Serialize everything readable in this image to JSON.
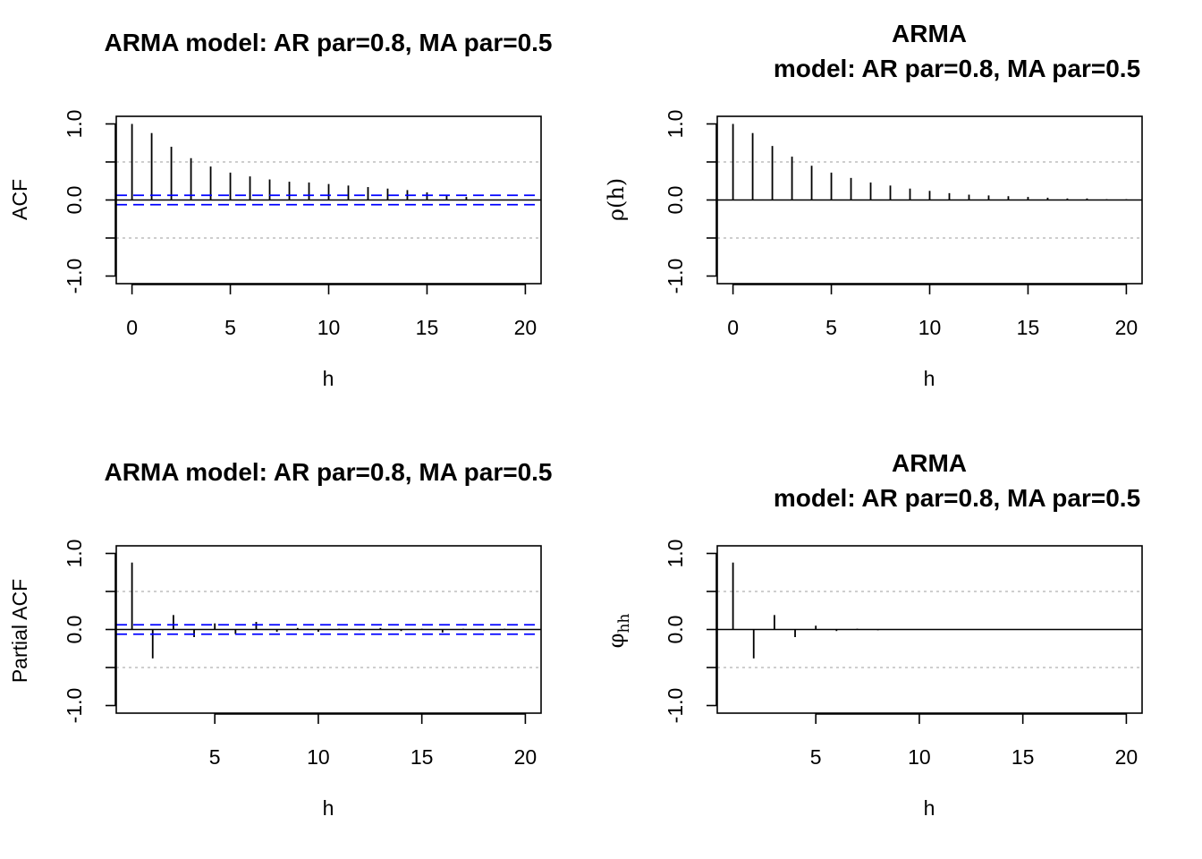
{
  "chart_data": [
    {
      "id": "sample-acf",
      "type": "bar",
      "title_lines": [
        "ARMA model: AR par=0.8, MA par=0.5"
      ],
      "title_center": "plot",
      "xlabel": "h",
      "ylabel": "ACF",
      "ylabel_kind": "plain",
      "xlim": [
        -0.8,
        20.8
      ],
      "ylim": [
        -1.1,
        1.1
      ],
      "xticks": [
        0,
        5,
        10,
        15,
        20
      ],
      "yticks": [
        -1.0,
        -0.5,
        0.0,
        0.5,
        1.0
      ],
      "ytick_labels": [
        "-1.0",
        "",
        "0.0",
        "",
        "1.0"
      ],
      "reference_lines": [
        -0.5,
        0.5
      ],
      "confidence_band": 0.062,
      "x": [
        0,
        1,
        2,
        3,
        4,
        5,
        6,
        7,
        8,
        9,
        10,
        11,
        12,
        13,
        14,
        15,
        16,
        17
      ],
      "values": [
        1.0,
        0.88,
        0.7,
        0.55,
        0.44,
        0.36,
        0.31,
        0.27,
        0.24,
        0.23,
        0.21,
        0.19,
        0.17,
        0.15,
        0.13,
        0.1,
        0.07,
        0.04
      ]
    },
    {
      "id": "theoretical-acf",
      "type": "bar",
      "title_lines": [
        "ARMA",
        "model: AR par=0.8, MA par=0.5"
      ],
      "title_center": "device",
      "xlabel": "h",
      "ylabel": "ρ(h)",
      "ylabel_kind": "serif",
      "xlim": [
        -0.8,
        20.8
      ],
      "ylim": [
        -1.1,
        1.1
      ],
      "xticks": [
        0,
        5,
        10,
        15,
        20
      ],
      "yticks": [
        -1.0,
        -0.5,
        0.0,
        0.5,
        1.0
      ],
      "ytick_labels": [
        "-1.0",
        "",
        "0.0",
        "",
        "1.0"
      ],
      "reference_lines": [
        -0.5,
        0.5
      ],
      "x": [
        0,
        1,
        2,
        3,
        4,
        5,
        6,
        7,
        8,
        9,
        10,
        11,
        12,
        13,
        14,
        15,
        16,
        17,
        18,
        19,
        20
      ],
      "values": [
        1.0,
        0.88,
        0.71,
        0.57,
        0.45,
        0.36,
        0.29,
        0.23,
        0.19,
        0.15,
        0.12,
        0.09,
        0.07,
        0.06,
        0.05,
        0.04,
        0.03,
        0.02,
        0.02,
        0.01,
        0.01
      ]
    },
    {
      "id": "sample-pacf",
      "type": "bar",
      "title_lines": [
        "ARMA model: AR par=0.8, MA par=0.5"
      ],
      "title_center": "plot",
      "xlabel": "h",
      "ylabel": "Partial ACF",
      "ylabel_kind": "plain",
      "xlim": [
        0.24,
        20.76
      ],
      "ylim": [
        -1.1,
        1.1
      ],
      "xticks": [
        5,
        10,
        15,
        20
      ],
      "yticks": [
        -1.0,
        -0.5,
        0.0,
        0.5,
        1.0
      ],
      "ytick_labels": [
        "-1.0",
        "",
        "0.0",
        "",
        "1.0"
      ],
      "reference_lines": [
        -0.5,
        0.5
      ],
      "confidence_band": 0.062,
      "x": [
        1,
        2,
        3,
        4,
        5,
        6,
        7,
        8,
        9,
        10,
        11,
        12,
        13,
        14,
        15,
        16,
        17,
        18,
        19,
        20
      ],
      "values": [
        0.88,
        -0.38,
        0.19,
        -0.1,
        0.08,
        -0.06,
        0.1,
        -0.03,
        0.02,
        -0.03,
        0.01,
        -0.01,
        0.02,
        -0.02,
        0.01,
        -0.04,
        0.01,
        -0.01,
        0.01,
        0.0
      ]
    },
    {
      "id": "theoretical-pacf",
      "type": "bar",
      "title_lines": [
        "ARMA",
        "model: AR par=0.8, MA par=0.5"
      ],
      "title_center": "device",
      "xlabel": "h",
      "ylabel": "φ",
      "ylabel_sub": "hh",
      "ylabel_kind": "subscript",
      "xlim": [
        0.24,
        20.76
      ],
      "ylim": [
        -1.1,
        1.1
      ],
      "xticks": [
        5,
        10,
        15,
        20
      ],
      "yticks": [
        -1.0,
        -0.5,
        0.0,
        0.5,
        1.0
      ],
      "ytick_labels": [
        "-1.0",
        "",
        "0.0",
        "",
        "1.0"
      ],
      "reference_lines": [
        -0.5,
        0.5
      ],
      "x": [
        1,
        2,
        3,
        4,
        5,
        6,
        7,
        8,
        9,
        10,
        11,
        12,
        13,
        14,
        15,
        16,
        17,
        18,
        19,
        20
      ],
      "values": [
        0.88,
        -0.38,
        0.19,
        -0.1,
        0.05,
        -0.02,
        0.01,
        -0.01,
        0.0,
        0.0,
        0.0,
        0.0,
        0.0,
        0.0,
        0.0,
        0.0,
        0.0,
        0.0,
        0.0,
        0.0
      ]
    }
  ],
  "colors": {
    "spike": "#000000",
    "reference_line": "#bebebe",
    "confidence_band": "#0000ff",
    "zero_line": "#000000"
  }
}
